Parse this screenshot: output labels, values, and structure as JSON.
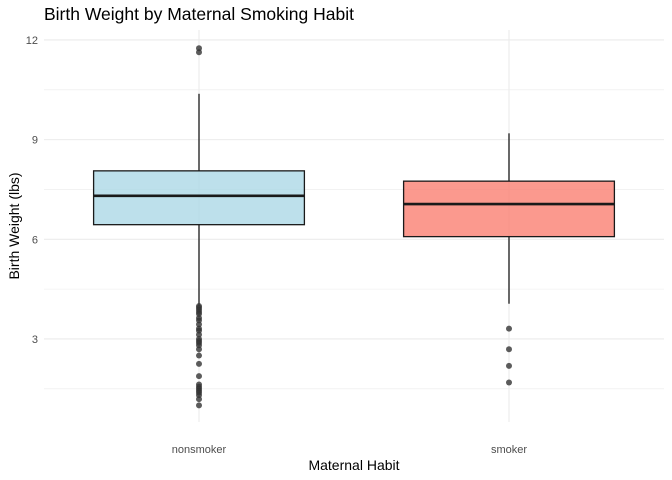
{
  "chart_data": {
    "type": "boxplot",
    "title": "Birth Weight by Maternal Smoking Habit",
    "xlabel": "Maternal Habit",
    "ylabel": "Birth Weight (lbs)",
    "ylim": [
      0.5,
      12.3
    ],
    "yticks": [
      3,
      6,
      9,
      12
    ],
    "grid": true,
    "legend": "none",
    "categories": [
      "nonsmoker",
      "smoker"
    ],
    "series": [
      {
        "category": "nonsmoker",
        "color": "#add8e6",
        "whisker_low": 4.0,
        "q1": 6.44,
        "median": 7.31,
        "q3": 8.06,
        "whisker_high": 10.38,
        "outliers": [
          11.75,
          11.63,
          3.99,
          3.94,
          3.88,
          3.81,
          3.75,
          3.63,
          3.56,
          3.44,
          3.31,
          3.25,
          3.13,
          3.0,
          2.94,
          2.88,
          2.81,
          2.69,
          2.5,
          2.25,
          1.88,
          1.63,
          1.56,
          1.5,
          1.44,
          1.38,
          1.31,
          1.19,
          1.0
        ]
      },
      {
        "category": "smoker",
        "color": "#fa8072",
        "whisker_low": 4.06,
        "q1": 6.08,
        "median": 7.06,
        "q3": 7.75,
        "whisker_high": 9.19,
        "outliers": [
          3.31,
          2.69,
          2.19,
          1.69
        ]
      }
    ]
  }
}
